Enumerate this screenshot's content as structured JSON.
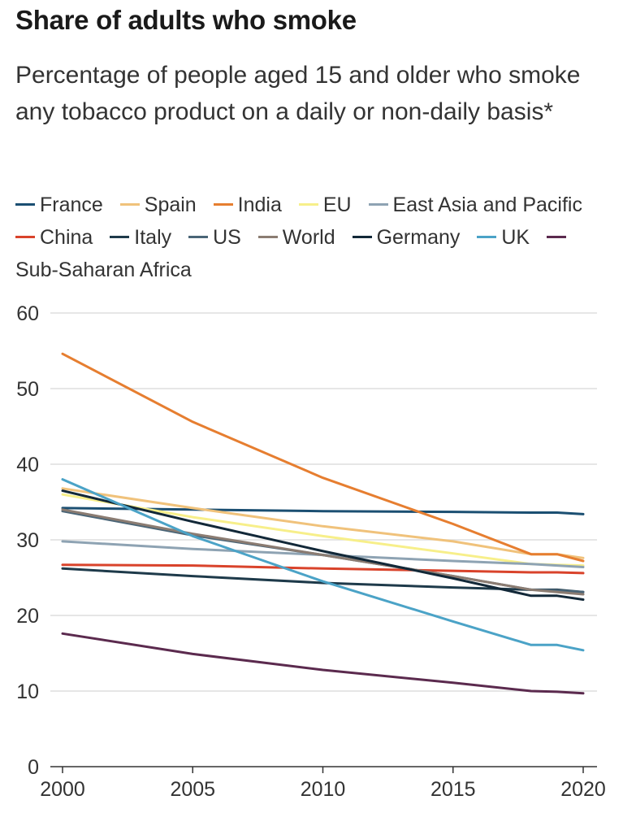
{
  "title": "Share of adults who smoke",
  "subtitle": "Percentage of people aged 15 and older who smoke any tobacco product on a daily or non-daily basis*",
  "chart_data": {
    "type": "line",
    "title": "Share of adults who smoke",
    "subtitle": "Percentage of people aged 15 and older who smoke any tobacco product on a daily or non-daily basis*",
    "xlabel": "",
    "ylabel": "",
    "xlim": [
      2000,
      2020
    ],
    "ylim": [
      0,
      60
    ],
    "x_ticks": [
      2000,
      2005,
      2010,
      2015,
      2020
    ],
    "x_tick_labels": [
      "2000",
      "2005",
      "2010",
      "2015",
      "2020"
    ],
    "y_ticks": [
      0,
      10,
      20,
      30,
      40,
      50,
      60
    ],
    "y_tick_labels": [
      "0",
      "10",
      "20",
      "30",
      "40",
      "50",
      "60"
    ],
    "grid": true,
    "legend": "top",
    "x": [
      2000,
      2005,
      2010,
      2015,
      2018,
      2019,
      2020
    ],
    "series": [
      {
        "name": "France",
        "color": "#1b4f72",
        "values": [
          34.2,
          34.0,
          33.8,
          33.7,
          33.6,
          33.6,
          33.4
        ]
      },
      {
        "name": "Spain",
        "color": "#f0c27b",
        "values": [
          36.8,
          34.2,
          31.8,
          29.8,
          28.1,
          28.1,
          27.6
        ]
      },
      {
        "name": "India",
        "color": "#e67e30",
        "values": [
          54.6,
          45.6,
          38.2,
          32.1,
          28.1,
          28.1,
          27.2
        ]
      },
      {
        "name": "EU",
        "color": "#f7ef8a",
        "values": [
          36.0,
          33.0,
          30.5,
          28.2,
          26.8,
          26.7,
          26.6
        ]
      },
      {
        "name": "East Asia and Pacific",
        "color": "#8ea3b3",
        "values": [
          29.8,
          28.8,
          28.0,
          27.2,
          26.8,
          26.6,
          26.4
        ]
      },
      {
        "name": "China",
        "color": "#d9432b",
        "values": [
          26.7,
          26.6,
          26.2,
          25.9,
          25.7,
          25.7,
          25.6
        ]
      },
      {
        "name": "Italy",
        "color": "#1e3a4a",
        "values": [
          26.2,
          25.2,
          24.3,
          23.7,
          23.4,
          23.4,
          23.1
        ]
      },
      {
        "name": "US",
        "color": "#4a6577",
        "values": [
          33.8,
          30.6,
          28.0,
          25.2,
          23.4,
          23.3,
          23.1
        ]
      },
      {
        "name": "World",
        "color": "#8b7c72",
        "values": [
          34.0,
          30.8,
          28.0,
          25.2,
          23.4,
          23.1,
          22.8
        ]
      },
      {
        "name": "Germany",
        "color": "#122838",
        "values": [
          36.5,
          32.4,
          28.5,
          24.9,
          22.6,
          22.6,
          22.1
        ]
      },
      {
        "name": "UK",
        "color": "#4ba3c7",
        "values": [
          38.0,
          30.5,
          24.5,
          19.2,
          16.1,
          16.1,
          15.4
        ]
      },
      {
        "name": "Sub-Saharan Africa",
        "color": "#5b2a4e",
        "values": [
          17.6,
          14.9,
          12.8,
          11.1,
          10.0,
          9.9,
          9.7
        ]
      }
    ]
  }
}
